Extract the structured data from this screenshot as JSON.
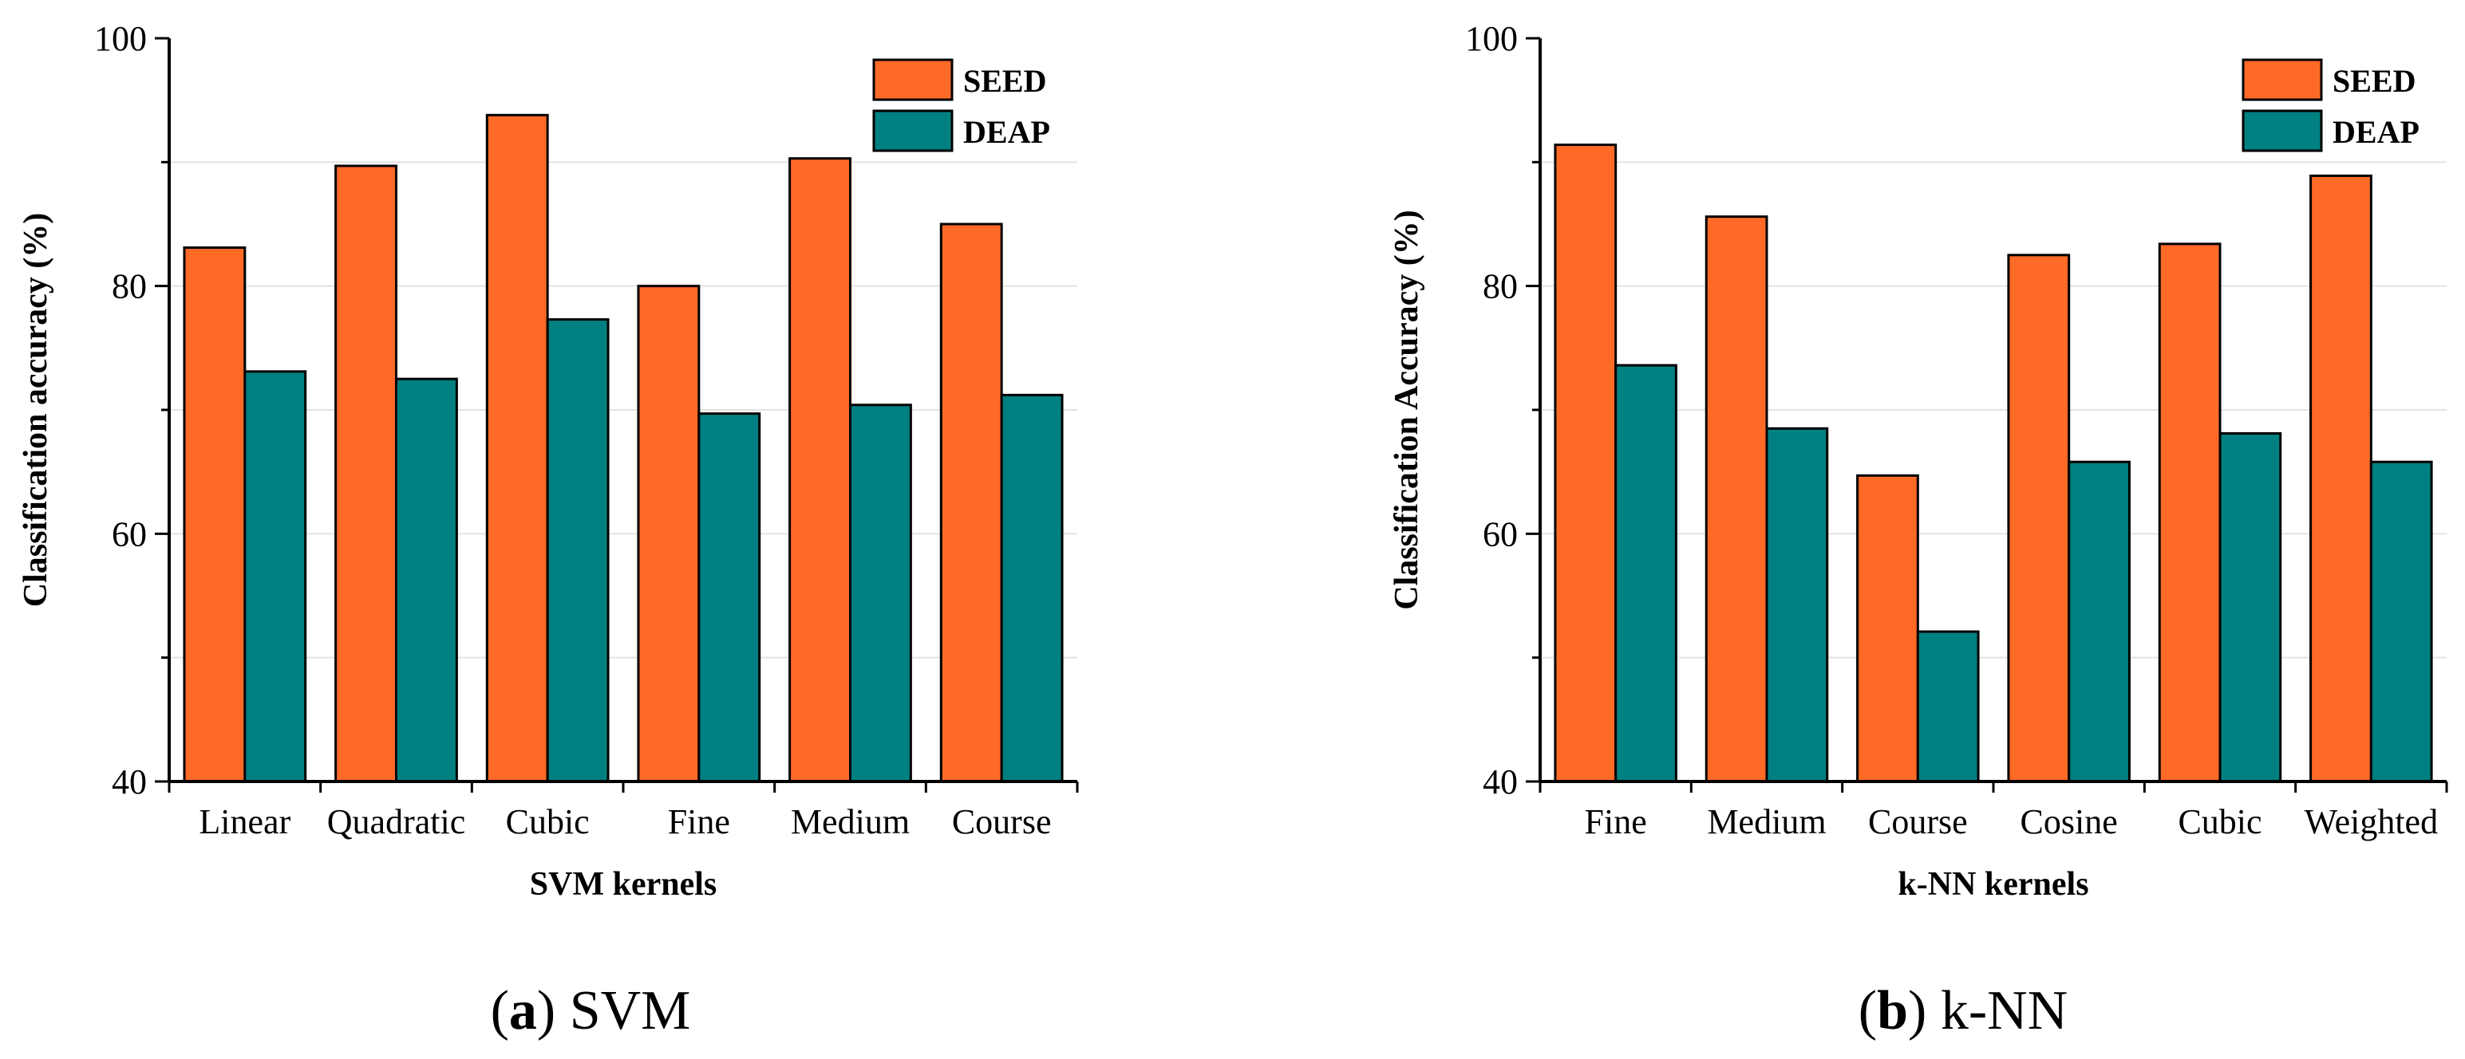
{
  "colors": {
    "seed": "#ff6a27",
    "deap": "#008080",
    "grid": "#e3e3e3",
    "axis": "#000000"
  },
  "chart_data": [
    {
      "type": "bar",
      "caption_letter": "a",
      "caption_text": "SVM",
      "caption_open": "(",
      "caption_close": ")",
      "xlabel": "SVM kernels",
      "ylabel": "Classification accuracy (%)",
      "ylim": [
        40,
        100
      ],
      "yticks": [
        40,
        60,
        80,
        100
      ],
      "grid": true,
      "legend": "top-right",
      "categories": [
        "Linear",
        "Quadratic",
        "Cubic",
        "Fine",
        "Medium",
        "Course"
      ],
      "series": [
        {
          "name": "SEED",
          "color_key": "seed",
          "values": [
            83.1,
            89.7,
            93.8,
            80.0,
            90.3,
            85.0
          ]
        },
        {
          "name": "DEAP",
          "color_key": "deap",
          "values": [
            73.1,
            72.5,
            77.3,
            69.7,
            70.4,
            71.2
          ]
        }
      ]
    },
    {
      "type": "bar",
      "caption_letter": "b",
      "caption_text": "k-NN",
      "caption_open": "(",
      "caption_close": ")",
      "xlabel": "k-NN kernels",
      "ylabel": "Classification Accuracy (%)",
      "ylim": [
        40,
        100
      ],
      "yticks": [
        40,
        60,
        80,
        100
      ],
      "grid": true,
      "legend": "top-right",
      "categories": [
        "Fine",
        "Medium",
        "Course",
        "Cosine",
        "Cubic",
        "Weighted"
      ],
      "series": [
        {
          "name": "SEED",
          "color_key": "seed",
          "values": [
            91.4,
            85.6,
            64.7,
            82.5,
            83.4,
            88.9
          ]
        },
        {
          "name": "DEAP",
          "color_key": "deap",
          "values": [
            73.6,
            68.5,
            52.1,
            65.8,
            68.1,
            65.8
          ]
        }
      ]
    }
  ]
}
